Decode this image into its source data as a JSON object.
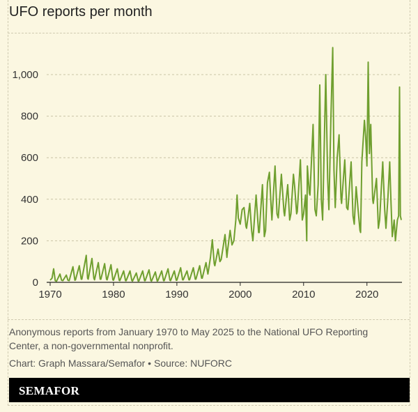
{
  "chart_data": {
    "type": "line",
    "title": "UFO reports per month",
    "xlabel": "",
    "ylabel": "",
    "xlim": [
      1970,
      2025.42
    ],
    "ylim": [
      0,
      1100
    ],
    "y_ticks": [
      {
        "value": 0,
        "label": "0"
      },
      {
        "value": 200,
        "label": "200"
      },
      {
        "value": 400,
        "label": "400"
      },
      {
        "value": 600,
        "label": "600"
      },
      {
        "value": 800,
        "label": "800"
      },
      {
        "value": 1000,
        "label": "1,000"
      }
    ],
    "x_ticks": [
      {
        "value": 1970,
        "label": "1970"
      },
      {
        "value": 1980,
        "label": "1980"
      },
      {
        "value": 1990,
        "label": "1990"
      },
      {
        "value": 2000,
        "label": "2000"
      },
      {
        "value": 2010,
        "label": "2010"
      },
      {
        "value": 2020,
        "label": "2020"
      }
    ],
    "grid": "horizontal dashed",
    "series_color": "#6f9f2f",
    "series": [
      {
        "values": [
          [
            1970.0,
            10
          ],
          [
            1970.3,
            20
          ],
          [
            1970.55,
            65
          ],
          [
            1970.8,
            8
          ],
          [
            1971.0,
            5
          ],
          [
            1971.55,
            40
          ],
          [
            1971.8,
            10
          ],
          [
            1972.0,
            8
          ],
          [
            1972.55,
            35
          ],
          [
            1972.8,
            10
          ],
          [
            1973.0,
            8
          ],
          [
            1973.6,
            75
          ],
          [
            1973.9,
            10
          ],
          [
            1974.0,
            12
          ],
          [
            1974.6,
            80
          ],
          [
            1974.9,
            15
          ],
          [
            1975.0,
            15
          ],
          [
            1975.7,
            130
          ],
          [
            1975.9,
            20
          ],
          [
            1976.0,
            15
          ],
          [
            1976.6,
            115
          ],
          [
            1976.9,
            20
          ],
          [
            1977.0,
            12
          ],
          [
            1977.6,
            95
          ],
          [
            1977.9,
            15
          ],
          [
            1978.0,
            15
          ],
          [
            1978.6,
            90
          ],
          [
            1978.9,
            15
          ],
          [
            1979.0,
            12
          ],
          [
            1979.6,
            85
          ],
          [
            1979.9,
            12
          ],
          [
            1980.0,
            10
          ],
          [
            1980.6,
            65
          ],
          [
            1980.9,
            10
          ],
          [
            1981.0,
            8
          ],
          [
            1981.6,
            55
          ],
          [
            1981.9,
            8
          ],
          [
            1982.0,
            8
          ],
          [
            1982.6,
            55
          ],
          [
            1982.9,
            8
          ],
          [
            1983.0,
            6
          ],
          [
            1983.6,
            45
          ],
          [
            1983.9,
            6
          ],
          [
            1984.0,
            6
          ],
          [
            1984.6,
            55
          ],
          [
            1984.9,
            8
          ],
          [
            1985.0,
            8
          ],
          [
            1985.6,
            60
          ],
          [
            1985.9,
            8
          ],
          [
            1986.0,
            6
          ],
          [
            1986.6,
            50
          ],
          [
            1986.9,
            6
          ],
          [
            1987.0,
            8
          ],
          [
            1987.6,
            55
          ],
          [
            1987.9,
            8
          ],
          [
            1988.0,
            8
          ],
          [
            1988.6,
            65
          ],
          [
            1988.9,
            10
          ],
          [
            1989.0,
            8
          ],
          [
            1989.6,
            55
          ],
          [
            1989.9,
            10
          ],
          [
            1990.0,
            10
          ],
          [
            1990.6,
            70
          ],
          [
            1990.9,
            12
          ],
          [
            1991.0,
            12
          ],
          [
            1991.6,
            55
          ],
          [
            1991.9,
            12
          ],
          [
            1992.0,
            12
          ],
          [
            1992.6,
            70
          ],
          [
            1992.9,
            15
          ],
          [
            1993.0,
            15
          ],
          [
            1993.6,
            80
          ],
          [
            1993.9,
            20
          ],
          [
            1994.0,
            20
          ],
          [
            1994.6,
            95
          ],
          [
            1994.9,
            40
          ],
          [
            1995.0,
            60
          ],
          [
            1995.3,
            120
          ],
          [
            1995.6,
            205
          ],
          [
            1995.9,
            90
          ],
          [
            1996.0,
            80
          ],
          [
            1996.5,
            160
          ],
          [
            1996.8,
            100
          ],
          [
            1997.0,
            110
          ],
          [
            1997.6,
            230
          ],
          [
            1997.9,
            120
          ],
          [
            1998.0,
            150
          ],
          [
            1998.4,
            250
          ],
          [
            1998.7,
            180
          ],
          [
            1999.0,
            200
          ],
          [
            1999.3,
            300
          ],
          [
            1999.5,
            420
          ],
          [
            1999.7,
            310
          ],
          [
            2000.0,
            280
          ],
          [
            2000.3,
            350
          ],
          [
            2000.6,
            360
          ],
          [
            2000.9,
            270
          ],
          [
            2001.0,
            260
          ],
          [
            2001.5,
            380
          ],
          [
            2001.8,
            250
          ],
          [
            2002.0,
            200
          ],
          [
            2002.5,
            420
          ],
          [
            2002.9,
            240
          ],
          [
            2003.0,
            240
          ],
          [
            2003.5,
            470
          ],
          [
            2003.8,
            220
          ],
          [
            2004.0,
            250
          ],
          [
            2004.3,
            480
          ],
          [
            2004.6,
            530
          ],
          [
            2004.9,
            350
          ],
          [
            2005.0,
            300
          ],
          [
            2005.5,
            560
          ],
          [
            2005.8,
            330
          ],
          [
            2006.0,
            310
          ],
          [
            2006.5,
            520
          ],
          [
            2006.9,
            340
          ],
          [
            2007.0,
            320
          ],
          [
            2007.5,
            470
          ],
          [
            2007.8,
            300
          ],
          [
            2008.0,
            330
          ],
          [
            2008.4,
            520
          ],
          [
            2008.6,
            460
          ],
          [
            2008.9,
            330
          ],
          [
            2009.0,
            340
          ],
          [
            2009.5,
            590
          ],
          [
            2009.8,
            300
          ],
          [
            2010.0,
            330
          ],
          [
            2010.3,
            420
          ],
          [
            2010.5,
            200
          ],
          [
            2010.6,
            560
          ],
          [
            2010.9,
            430
          ],
          [
            2011.0,
            420
          ],
          [
            2011.5,
            760
          ],
          [
            2011.8,
            350
          ],
          [
            2012.0,
            320
          ],
          [
            2012.3,
            470
          ],
          [
            2012.55,
            950
          ],
          [
            2012.8,
            400
          ],
          [
            2013.0,
            300
          ],
          [
            2013.5,
            1000
          ],
          [
            2013.8,
            500
          ],
          [
            2014.0,
            350
          ],
          [
            2014.3,
            780
          ],
          [
            2014.6,
            1130
          ],
          [
            2014.8,
            540
          ],
          [
            2015.0,
            360
          ],
          [
            2015.3,
            600
          ],
          [
            2015.6,
            710
          ],
          [
            2015.9,
            410
          ],
          [
            2016.0,
            380
          ],
          [
            2016.5,
            590
          ],
          [
            2016.8,
            360
          ],
          [
            2017.0,
            350
          ],
          [
            2017.5,
            580
          ],
          [
            2017.8,
            320
          ],
          [
            2018.0,
            280
          ],
          [
            2018.3,
            460
          ],
          [
            2018.6,
            350
          ],
          [
            2018.9,
            250
          ],
          [
            2019.0,
            240
          ],
          [
            2019.2,
            580
          ],
          [
            2019.6,
            780
          ],
          [
            2019.8,
            700
          ],
          [
            2020.0,
            560
          ],
          [
            2020.2,
            1060
          ],
          [
            2020.4,
            620
          ],
          [
            2020.6,
            760
          ],
          [
            2020.9,
            400
          ],
          [
            2021.0,
            380
          ],
          [
            2021.5,
            500
          ],
          [
            2021.8,
            260
          ],
          [
            2022.0,
            300
          ],
          [
            2022.5,
            580
          ],
          [
            2022.8,
            350
          ],
          [
            2023.0,
            260
          ],
          [
            2023.3,
            400
          ],
          [
            2023.6,
            580
          ],
          [
            2023.8,
            380
          ],
          [
            2024.0,
            220
          ],
          [
            2024.3,
            300
          ],
          [
            2024.5,
            200
          ],
          [
            2024.8,
            300
          ],
          [
            2025.0,
            320
          ],
          [
            2025.15,
            940
          ],
          [
            2025.28,
            320
          ],
          [
            2025.42,
            300
          ]
        ]
      }
    ]
  },
  "notes": {
    "description": "Anonymous reports from January 1970 to May 2025 to the National UFO Reporting Center, a non-governmental nonprofit.",
    "credit": "Chart: Graph Massara/Semafor • Source: NUFORC"
  },
  "brand": {
    "name": "SEMAFOR"
  }
}
